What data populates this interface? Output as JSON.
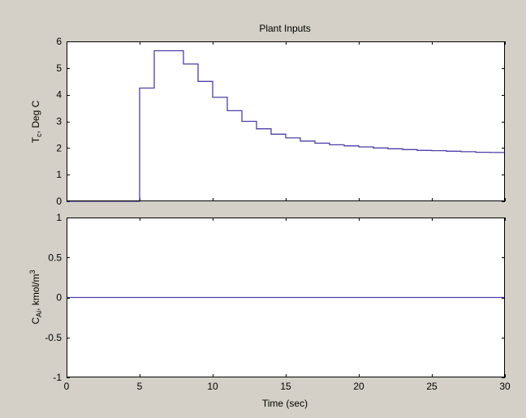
{
  "figure": {
    "background": "#d4d0c8",
    "axes_background": "#ffffff",
    "line_color": "#4b3fa8"
  },
  "chart_data": [
    {
      "type": "line",
      "title": "Plant Inputs",
      "ylabel": "T_c, Deg C",
      "xlabel": "",
      "xlim": [
        0,
        30
      ],
      "ylim": [
        0,
        6
      ],
      "xticks": [
        0,
        5,
        10,
        15,
        20,
        25,
        30
      ],
      "yticks": [
        0,
        1,
        2,
        3,
        4,
        5,
        6
      ],
      "xtick_labels_shown": false,
      "grid": false,
      "step": true,
      "series": [
        {
          "x": [
            0,
            1,
            2,
            3,
            4,
            5,
            6,
            7,
            8,
            9,
            10,
            11,
            12,
            13,
            14,
            15,
            16,
            17,
            18,
            19,
            20,
            21,
            22,
            23,
            24,
            25,
            26,
            27,
            28,
            29,
            30
          ],
          "values": [
            0,
            0,
            0,
            0,
            0,
            4.25,
            5.65,
            5.65,
            5.15,
            4.5,
            3.9,
            3.4,
            3.0,
            2.72,
            2.52,
            2.38,
            2.26,
            2.18,
            2.12,
            2.08,
            2.04,
            2.0,
            1.97,
            1.94,
            1.91,
            1.9,
            1.88,
            1.86,
            1.84,
            1.83,
            1.83
          ]
        }
      ]
    },
    {
      "type": "line",
      "title": "",
      "ylabel": "C_Ai, kmol/m^3",
      "xlabel": "Time (sec)",
      "xlim": [
        0,
        30
      ],
      "ylim": [
        -1,
        1
      ],
      "xticks": [
        0,
        5,
        10,
        15,
        20,
        25,
        30
      ],
      "yticks": [
        -1,
        -0.5,
        0,
        0.5,
        1
      ],
      "xtick_labels_shown": true,
      "grid": false,
      "step": false,
      "series": [
        {
          "x": [
            0,
            30
          ],
          "values": [
            0,
            0
          ]
        }
      ]
    }
  ]
}
